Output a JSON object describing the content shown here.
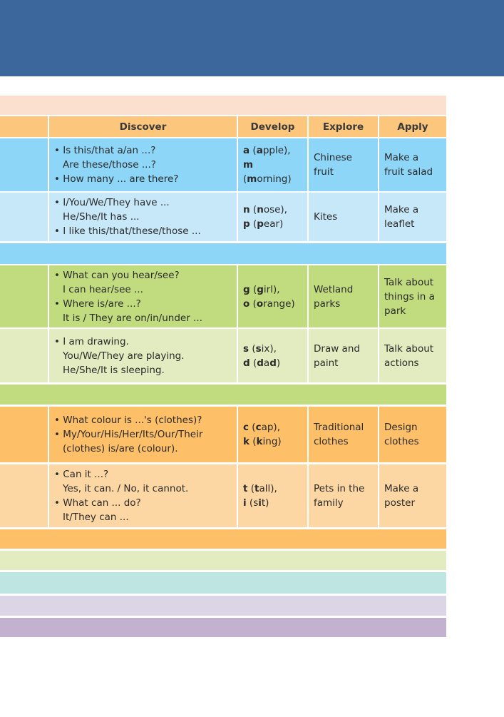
{
  "colors": {
    "header": "#3c679c",
    "peach": "#fbe0d0",
    "head_row": "#fcc77c",
    "blue": "#8dd6f7",
    "light_blue": "#c7e8f9",
    "green": "#c1dc7e",
    "light_green": "#e2ecc0",
    "orange": "#fdbf68",
    "light_orange": "#fdd7a3",
    "teal": "#bfe5e3",
    "lavender": "#dcd5e5",
    "purple": "#c2b2d0"
  },
  "table": {
    "headers": [
      "",
      "Discover",
      "Develop",
      "Explore",
      "Apply"
    ],
    "rows": [
      {
        "color": "#8dd6f7",
        "discover": [
          {
            "t": "Is this/that a/an ...?",
            "bullet": true
          },
          {
            "t": "Are these/those ...?"
          },
          {
            "t": "How many ... are there?",
            "bullet": true
          }
        ],
        "develop": [
          [
            [
              "a",
              1
            ],
            [
              " ("
            ],
            [
              "a",
              1
            ],
            [
              "pple),"
            ]
          ],
          [
            [
              "m",
              1
            ],
            [
              " ("
            ],
            [
              "m",
              1
            ],
            [
              "orning)"
            ]
          ]
        ],
        "explore": "Chinese fruit",
        "apply": "Make a fruit salad"
      },
      {
        "color": "#c7e8f9",
        "discover": [
          {
            "t": "I/You/We/They have ...",
            "bullet": true
          },
          {
            "t": "He/She/It has ..."
          },
          {
            "t": "I like this/that/these/those ...",
            "bullet": true
          }
        ],
        "develop": [
          [
            [
              "n",
              1
            ],
            [
              " ("
            ],
            [
              "n",
              1
            ],
            [
              "ose),"
            ]
          ],
          [
            [
              "p",
              1
            ],
            [
              " ("
            ],
            [
              "p",
              1
            ],
            [
              "ear)"
            ]
          ]
        ],
        "explore": "Kites",
        "apply": "Make a leaflet"
      },
      {
        "color": "#c1dc7e",
        "discover": [
          {
            "t": "What can you hear/see?",
            "bullet": true
          },
          {
            "t": "I can hear/see ..."
          },
          {
            "t": "Where is/are ...?",
            "bullet": true
          },
          {
            "t": "It is / They are on/in/under ..."
          }
        ],
        "develop": [
          [
            [
              "g",
              1
            ],
            [
              " ("
            ],
            [
              "g",
              1
            ],
            [
              "irl),"
            ]
          ],
          [
            [
              "o",
              1
            ],
            [
              " ("
            ],
            [
              "o",
              1
            ],
            [
              "range)"
            ]
          ]
        ],
        "explore": "Wetland parks",
        "apply": "Talk about things in a park"
      },
      {
        "color": "#e2ecc0",
        "discover": [
          {
            "t": "I am drawing.",
            "bullet": true
          },
          {
            "t": "You/We/They are playing."
          },
          {
            "t": "He/She/It is sleeping."
          }
        ],
        "develop": [
          [
            [
              "s",
              1
            ],
            [
              " ("
            ],
            [
              "s",
              1
            ],
            [
              "ix),"
            ]
          ],
          [
            [
              "d",
              1
            ],
            [
              " ("
            ],
            [
              "d",
              1
            ],
            [
              "a"
            ],
            [
              "d",
              1
            ],
            [
              ")"
            ]
          ]
        ],
        "explore": "Draw and paint",
        "apply": "Talk about actions"
      },
      {
        "color": "#fdbf68",
        "discover": [
          {
            "t": "What colour is ...'s  (clothes)?",
            "bullet": true
          },
          {
            "t": "My/Your/His/Her/Its/Our/Their",
            "bullet": true
          },
          {
            "t": "(clothes) is/are (colour)."
          }
        ],
        "develop": [
          [
            [
              "c",
              1
            ],
            [
              " ("
            ],
            [
              "c",
              1
            ],
            [
              "ap),"
            ]
          ],
          [
            [
              "k",
              1
            ],
            [
              " ("
            ],
            [
              "k",
              1
            ],
            [
              "ing)"
            ]
          ]
        ],
        "explore": "Traditional clothes",
        "apply": "Design clothes"
      },
      {
        "color": "#fdd7a3",
        "discover": [
          {
            "t": "Can it ...?",
            "bullet": true
          },
          {
            "t": "Yes, it can. / No, it cannot."
          },
          {
            "t": "What can ... do?",
            "bullet": true
          },
          {
            "t": "It/They can ..."
          }
        ],
        "develop": [
          [
            [
              "t",
              1
            ],
            [
              " ("
            ],
            [
              "t",
              1
            ],
            [
              "all),"
            ]
          ],
          [
            [
              "i",
              1
            ],
            [
              " (s"
            ],
            [
              "i",
              1
            ],
            [
              "t)"
            ]
          ]
        ],
        "explore": "Pets in the family",
        "apply": "Make a poster"
      }
    ]
  }
}
